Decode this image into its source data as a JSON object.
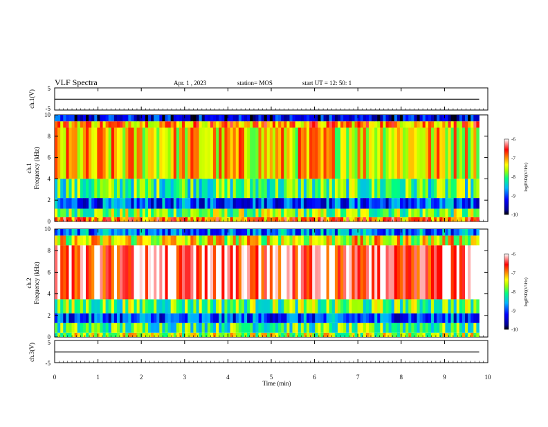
{
  "header": {
    "title": "VLF Spectra",
    "date": "Apr. 1  , 2023",
    "station": "station= MOS",
    "start": "start  UT =   12: 50: 1"
  },
  "chart_data": [
    {
      "type": "line",
      "panel": "ch1-voltage",
      "ylabel": "ch.1(V)",
      "ylim": [
        -5,
        5
      ],
      "yticks": [
        "5",
        "-5"
      ],
      "x": [
        0,
        1,
        2,
        3,
        4,
        5,
        6,
        7,
        8,
        9,
        9.8
      ],
      "y": [
        -0.1,
        -0.1,
        -0.1,
        -0.1,
        -0.1,
        -0.1,
        -0.1,
        -0.1,
        -0.1,
        -0.1,
        -0.1
      ]
    },
    {
      "type": "heatmap",
      "panel": "ch1-spectrogram",
      "ylabel": "ch.1\nFrequency (kHz)",
      "ylim": [
        0,
        10
      ],
      "yticks": [
        "0",
        "2",
        "4",
        "6",
        "8",
        "10"
      ],
      "xlim": [
        0,
        10
      ],
      "colorbar": {
        "label": "log(PSD)(V²/Hz)",
        "range": [
          -10,
          -6
        ],
        "ticks": [
          "-6",
          "-7",
          "-8",
          "-9",
          "-10"
        ]
      },
      "bands": [
        {
          "from": 0,
          "to": 0.4,
          "level": -6.9
        },
        {
          "from": 0.4,
          "to": 1.2,
          "level": -7.8
        },
        {
          "from": 1.2,
          "to": 2.2,
          "level": -9.0
        },
        {
          "from": 2.2,
          "to": 4.0,
          "level": -8.0
        },
        {
          "from": 4.0,
          "to": 8.8,
          "level": -7.3
        },
        {
          "from": 8.8,
          "to": 9.4,
          "level": -7.0
        },
        {
          "from": 9.4,
          "to": 10,
          "level": -9.4
        }
      ]
    },
    {
      "type": "heatmap",
      "panel": "ch2-spectrogram",
      "ylabel": "ch.2\nFrequency (kHz)",
      "ylim": [
        0,
        10
      ],
      "yticks": [
        "0",
        "2",
        "4",
        "6",
        "8",
        "10"
      ],
      "xlim": [
        0,
        10
      ],
      "colorbar": {
        "label": "log(PSD)(V²/Hz)",
        "range": [
          -10,
          -6
        ],
        "ticks": [
          "-6",
          "-7",
          "-8",
          "-9",
          "-10"
        ]
      },
      "bands": [
        {
          "from": 0,
          "to": 0.4,
          "level": -7.6
        },
        {
          "from": 0.4,
          "to": 1.3,
          "level": -8.0
        },
        {
          "from": 1.3,
          "to": 2.2,
          "level": -9.0
        },
        {
          "from": 2.2,
          "to": 3.5,
          "level": -7.9
        },
        {
          "from": 3.5,
          "to": 8.5,
          "level": -6.3
        },
        {
          "from": 8.5,
          "to": 9.4,
          "level": -7.4
        },
        {
          "from": 9.4,
          "to": 10,
          "level": -8.8
        }
      ]
    },
    {
      "type": "line",
      "panel": "ch3-voltage",
      "ylabel": "ch.3(V)",
      "ylim": [
        -5,
        5
      ],
      "yticks": [
        "5",
        "-5"
      ],
      "x": [
        0,
        1,
        2,
        3,
        4,
        5,
        6,
        7,
        8,
        9,
        9.8
      ],
      "y": [
        -0.2,
        -0.2,
        -0.2,
        -0.2,
        -0.2,
        -0.2,
        -0.2,
        -0.2,
        -0.2,
        -0.2,
        -0.2
      ]
    }
  ],
  "xaxis": {
    "label": "Time  (min)",
    "range": [
      0,
      10
    ],
    "ticks": [
      "0",
      "1",
      "2",
      "3",
      "4",
      "5",
      "6",
      "7",
      "8",
      "9",
      "10"
    ]
  },
  "colors": {
    "colormap": [
      "#000080",
      "#0000ff",
      "#00b0ff",
      "#00ff80",
      "#a0ff00",
      "#ffff00",
      "#ff8000",
      "#ff0000",
      "#ffffff"
    ]
  }
}
